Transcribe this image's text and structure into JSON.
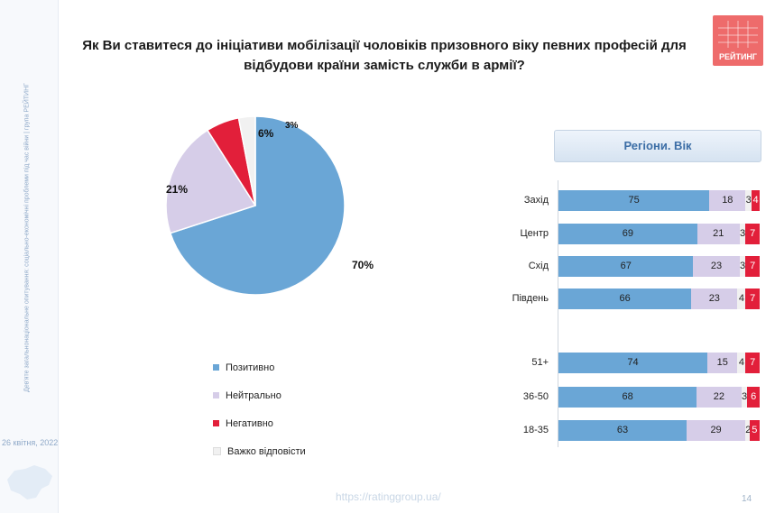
{
  "sidebar": {
    "text": "Дев'яте загальнонаціональне опитування: соціально-економічні проблеми під час війни | група РЕЙТИНГ",
    "date": "26 квітня, 2022"
  },
  "title": "Як Ви ставитеся до ініціативи мобілізації чоловіків призовного віку певних професій для відбудови країни замість служби в армії?",
  "logo": {
    "text": "РЕЙТИНГ",
    "color": "#ee6b6b"
  },
  "colors": {
    "positive": "#6aa6d6",
    "neutral": "#d6cde8",
    "negative": "#e21f3a",
    "hard": "#f1f1f1",
    "header_text": "#3c6ea6"
  },
  "footer": {
    "url": "https://ratinggroup.ua/",
    "page": "14"
  },
  "chart_data": [
    {
      "type": "pie",
      "slices": [
        {
          "label": "Позитивно",
          "value": 70,
          "display": "70%"
        },
        {
          "label": "Нейтрально",
          "value": 21,
          "display": "21%"
        },
        {
          "label": "Негативно",
          "value": 6,
          "display": "6%"
        },
        {
          "label": "Важко відповісти",
          "value": 3,
          "display": "3%"
        }
      ]
    },
    {
      "type": "bar",
      "orientation": "horizontal",
      "stacked": true,
      "title": "Регіони. Вік",
      "groups": [
        {
          "categories": [
            "Захід",
            "Центр",
            "Схід",
            "Південь"
          ],
          "series": [
            {
              "name": "Позитивно",
              "values": [
                75,
                69,
                67,
                66
              ]
            },
            {
              "name": "Нейтрально",
              "values": [
                18,
                21,
                23,
                23
              ]
            },
            {
              "name": "Важко відповісти",
              "values": [
                3,
                3,
                3,
                4
              ]
            },
            {
              "name": "Негативно",
              "values": [
                4,
                7,
                7,
                7
              ]
            }
          ]
        },
        {
          "categories": [
            "51+",
            "36-50",
            "18-35"
          ],
          "series": [
            {
              "name": "Позитивно",
              "values": [
                74,
                68,
                63
              ]
            },
            {
              "name": "Нейтрально",
              "values": [
                15,
                22,
                29
              ]
            },
            {
              "name": "Важко відповісти",
              "values": [
                4,
                3,
                2
              ]
            },
            {
              "name": "Негативно",
              "values": [
                7,
                6,
                5
              ]
            }
          ]
        }
      ]
    }
  ]
}
